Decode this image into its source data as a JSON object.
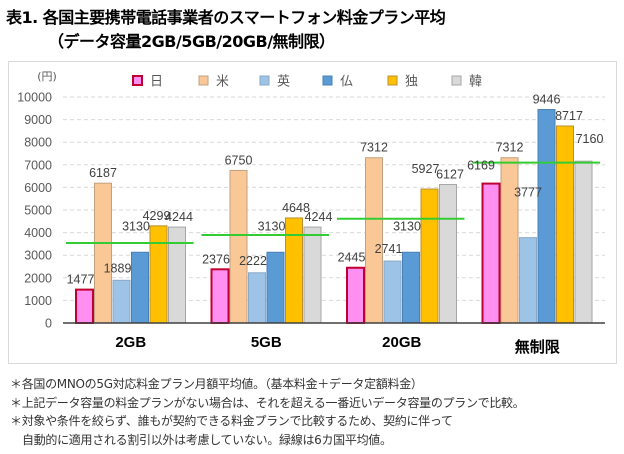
{
  "header": {
    "title": "表1. 各国主要携帯電話事業者のスマートフォン料金プラン平均",
    "subtitle": "（データ容量2GB/5GB/20GB/無制限）"
  },
  "chart_data": {
    "type": "bar",
    "title": "各国主要携帯電話事業者のスマートフォン料金プラン平均",
    "ylabel": "(円)",
    "xlabel": "",
    "ylim": [
      0,
      10000
    ],
    "yticks": [
      0,
      1000,
      2000,
      3000,
      4000,
      5000,
      6000,
      7000,
      8000,
      9000,
      10000
    ],
    "grid": true,
    "legend_position": "top",
    "categories": [
      "2GB",
      "5GB",
      "20GB",
      "無制限"
    ],
    "series": [
      {
        "name": "日",
        "color": "#ff8ff0",
        "stroke": "#c00030",
        "values": [
          1477,
          2376,
          2445,
          6169
        ]
      },
      {
        "name": "米",
        "color": "#fac896",
        "stroke": "#c0a080",
        "values": [
          6187,
          6750,
          7312,
          7312
        ]
      },
      {
        "name": "英",
        "color": "#9dc3e6",
        "stroke": "#8aa8c6",
        "values": [
          1889,
          2222,
          2741,
          3777
        ]
      },
      {
        "name": "仏",
        "color": "#5b9bd5",
        "stroke": "#4a80b8",
        "values": [
          3130,
          3130,
          3130,
          9446
        ]
      },
      {
        "name": "独",
        "color": "#ffc000",
        "stroke": "#b89030",
        "values": [
          4299,
          4648,
          5927,
          8717
        ]
      },
      {
        "name": "韓",
        "color": "#d9d9d9",
        "stroke": "#a6a6a6",
        "values": [
          4244,
          4244,
          6127,
          7160
        ]
      }
    ],
    "average_line": {
      "name": "6カ国平均値",
      "color": "#33cc33",
      "values": [
        3538,
        3895,
        4614,
        7097
      ]
    }
  },
  "notes": [
    "＊各国のMNOの5G対応料金プラン月額平均値。（基本料金＋データ定額料金）",
    "＊上記データ容量の料金プランがない場合は、それを超える一番近いデータ容量のプランで比較。",
    "＊対象や条件を絞らず、誰もが契約できる料金プランで比較するため、契約に伴って",
    "自動的に適用される割引以外は考慮していない。緑線は6カ国平均値。"
  ]
}
